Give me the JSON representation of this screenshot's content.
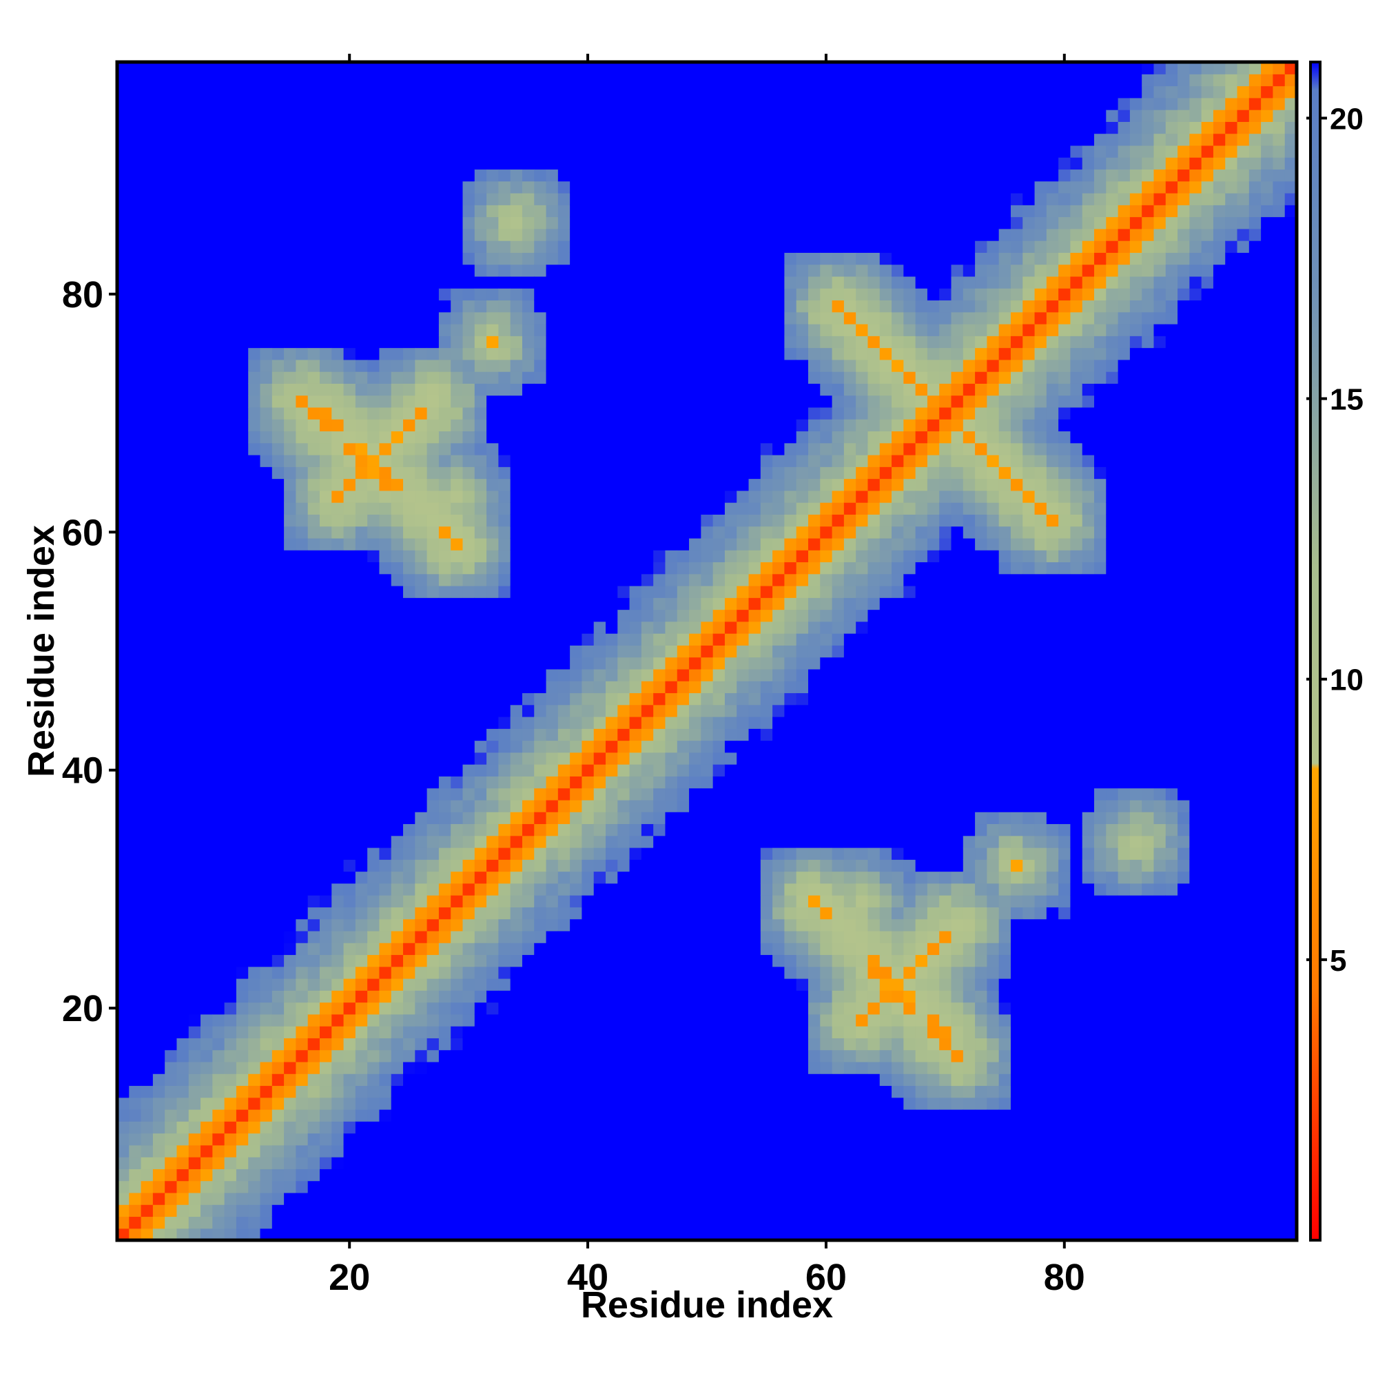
{
  "chart_data": {
    "type": "heatmap",
    "title": "",
    "xlabel": "Residue index",
    "ylabel": "Residue index",
    "xlim": [
      1,
      99
    ],
    "ylim": [
      1,
      99
    ],
    "x_ticks": [
      20,
      40,
      60,
      80
    ],
    "y_ticks": [
      20,
      40,
      60,
      80
    ],
    "x_tick_labels": [
      "20",
      "40",
      "60",
      "80"
    ],
    "y_tick_labels": [
      "20",
      "40",
      "60",
      "80"
    ],
    "colorbar": {
      "range": [
        0,
        21
      ],
      "ticks": [
        5,
        10,
        15,
        20
      ],
      "tick_labels": [
        "5",
        "10",
        "15",
        "20"
      ],
      "stops": [
        {
          "value": 0,
          "color": "#ff0000"
        },
        {
          "value": 4.5,
          "color": "#ff7a00"
        },
        {
          "value": 8.4,
          "color": "#ffa500"
        },
        {
          "value": 8.5,
          "color": "#b4c48c"
        },
        {
          "value": 12,
          "color": "#a8bd8e"
        },
        {
          "value": 17,
          "color": "#6f91b8"
        },
        {
          "value": 20.5,
          "color": "#5a7ec6"
        },
        {
          "value": 21,
          "color": "#0000ff"
        }
      ]
    },
    "description_of_values": "Residue-residue distance matrix (symmetric); values above ~20 are shown as saturated blue.",
    "contact_features": [
      {
        "kind": "diagonal",
        "from": 1,
        "to": 99,
        "value": 2
      },
      {
        "kind": "band",
        "from": 1,
        "to": 99,
        "offset": 1,
        "value": 5
      },
      {
        "kind": "band",
        "from": 1,
        "to": 99,
        "offset": 2,
        "value": 7
      },
      {
        "kind": "antiparallel",
        "sum": 87,
        "i_range": [
          16,
          23
        ],
        "value": 6.5
      },
      {
        "kind": "antiparallel",
        "sum": 88,
        "i_range": [
          59,
          70
        ],
        "value": 6.5
      },
      {
        "kind": "antiparallel",
        "sum": 140,
        "i_range": [
          68,
          79
        ],
        "value": 6.5
      },
      {
        "kind": "parallel",
        "offset": 44,
        "i_range": [
          19,
          27
        ],
        "value": 6.5
      },
      {
        "kind": "cluster",
        "i": 76,
        "j": 32,
        "value": 8
      },
      {
        "kind": "cluster",
        "i": 63,
        "j": 29,
        "value": 8
      },
      {
        "kind": "cluster",
        "i": 34,
        "j": 86,
        "value": 8
      }
    ],
    "background_value": 21,
    "grid": false,
    "legend": "colorbar-right"
  }
}
